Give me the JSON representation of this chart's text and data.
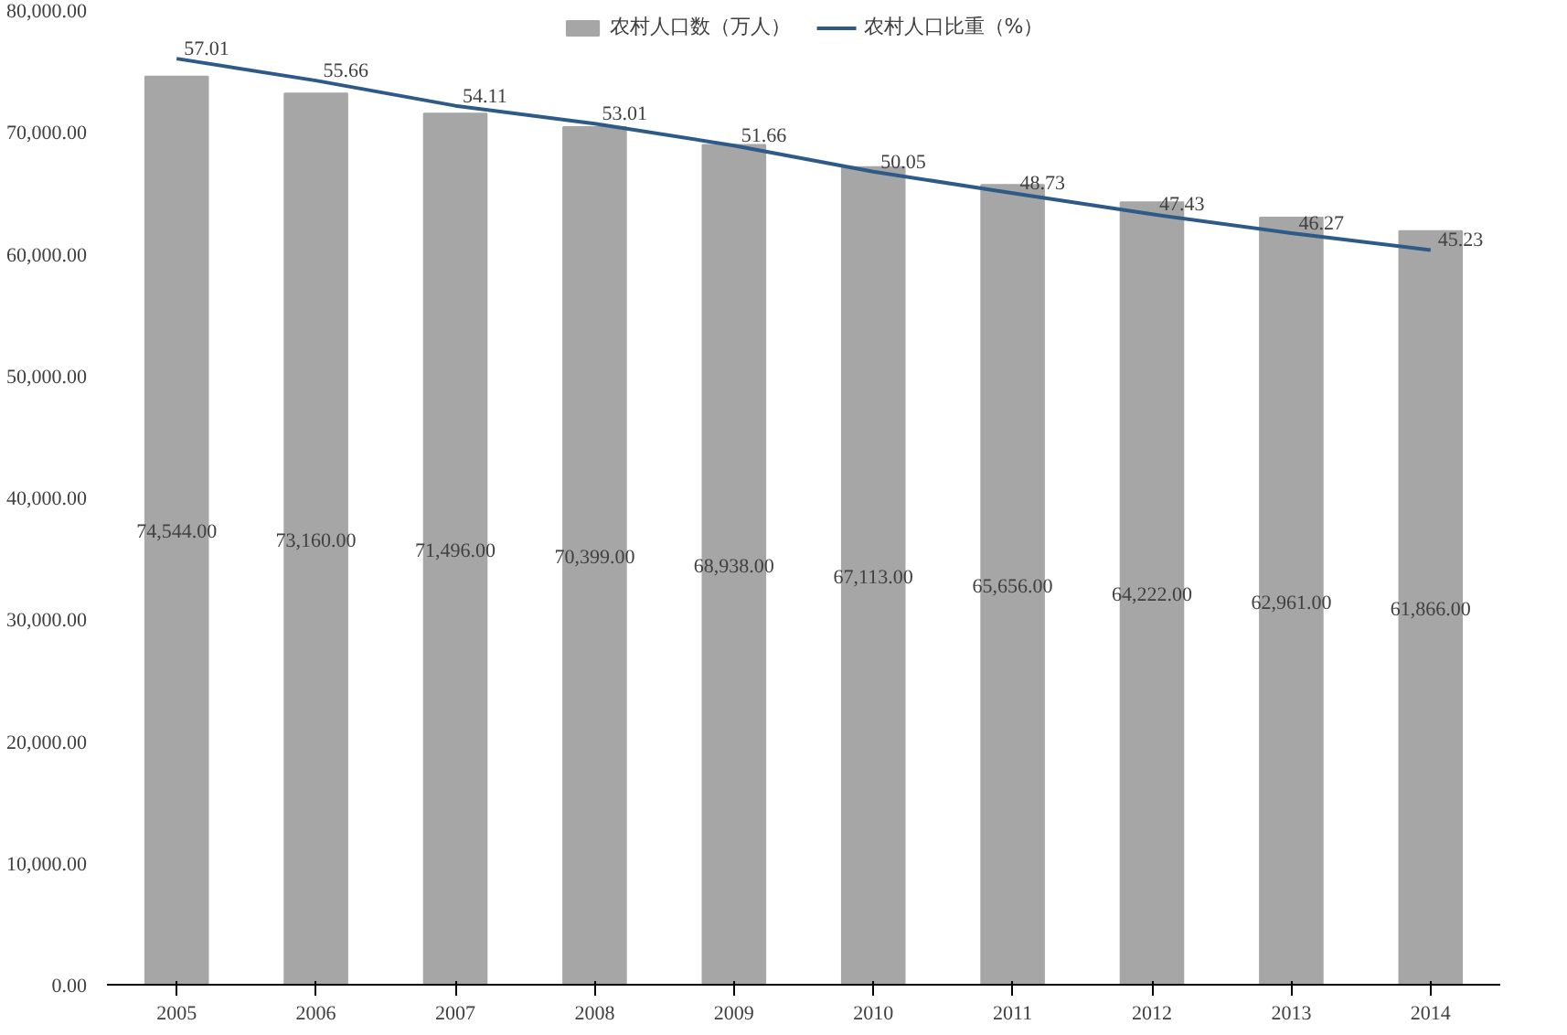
{
  "chart_data": {
    "type": "bar",
    "categories": [
      "2005",
      "2006",
      "2007",
      "2008",
      "2009",
      "2010",
      "2011",
      "2012",
      "2013",
      "2014"
    ],
    "series": [
      {
        "name": "农村人口数（万人）",
        "color": "#a6a6a6",
        "values": [
          74544,
          73160,
          71496,
          70399,
          68938,
          67113,
          65656,
          64222,
          62961,
          61866
        ],
        "value_labels": [
          "74,544.00",
          "73,160.00",
          "71,496.00",
          "70,399.00",
          "68,938.00",
          "67,113.00",
          "65,656.00",
          "64,222.00",
          "62,961.00",
          "61,866.00"
        ]
      },
      {
        "name": "农村人口比重（%）",
        "type": "line",
        "axis": "y2",
        "color": "#2e5a87",
        "values": [
          57.01,
          55.66,
          54.11,
          53.01,
          51.66,
          50.05,
          48.73,
          47.43,
          46.27,
          45.23
        ],
        "value_labels": [
          "57.01",
          "55.66",
          "54.11",
          "53.01",
          "51.66",
          "50.05",
          "48.73",
          "47.43",
          "46.27",
          "45.23"
        ]
      }
    ],
    "ylim": [
      0,
      80000
    ],
    "yticks": [
      {
        "value": 0,
        "label": "0.00"
      },
      {
        "value": 10000,
        "label": "10,000.00"
      },
      {
        "value": 20000,
        "label": "20,000.00"
      },
      {
        "value": 30000,
        "label": "30,000.00"
      },
      {
        "value": 40000,
        "label": "40,000.00"
      },
      {
        "value": 50000,
        "label": "50,000.00"
      },
      {
        "value": 60000,
        "label": "60,000.00"
      },
      {
        "value": 70000,
        "label": "70,000.00"
      },
      {
        "value": 80000,
        "label": "80,000.00"
      }
    ],
    "y2lim": [
      0,
      60
    ],
    "grid": false,
    "legend": "top",
    "line_style": "solid",
    "marker": "none"
  }
}
